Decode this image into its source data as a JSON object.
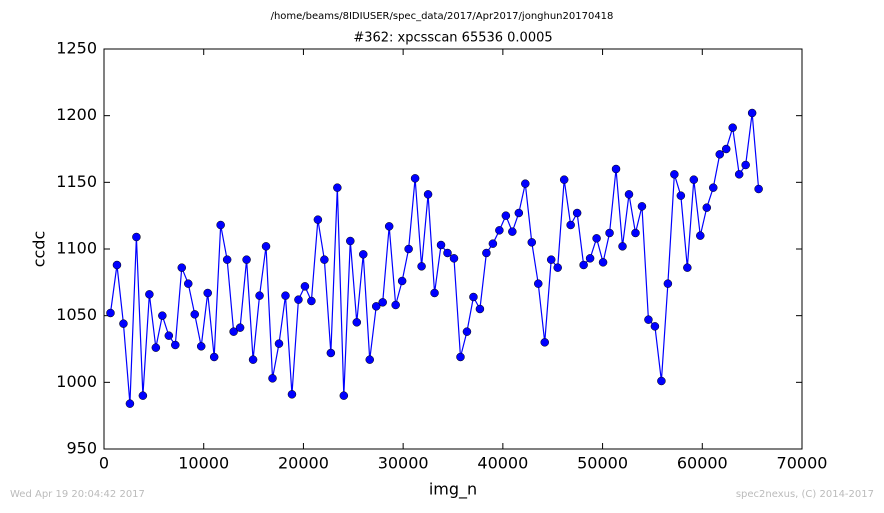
{
  "chart_data": {
    "type": "line",
    "header": "/home/beams/8IDIUSER/spec_data/2017/Apr2017/jonghun20170418",
    "title": "#362: xpcsscan 65536 0.0005",
    "xlabel": "img_n",
    "ylabel": "ccdc",
    "footer_left": "Wed Apr 19 20:04:42 2017",
    "footer_right": "spec2nexus, (C) 2014-2017",
    "xlim": [
      0,
      70000
    ],
    "xticks": [
      0,
      10000,
      20000,
      30000,
      40000,
      50000,
      60000,
      70000
    ],
    "ylim": [
      950,
      1250
    ],
    "yticks": [
      950,
      1000,
      1050,
      1100,
      1150,
      1200,
      1250
    ],
    "x": [
      650,
      1300,
      1950,
      2600,
      3250,
      3900,
      4550,
      5200,
      5850,
      6500,
      7150,
      7800,
      8450,
      9100,
      9750,
      10400,
      11050,
      11700,
      12350,
      13000,
      13650,
      14300,
      14950,
      15600,
      16250,
      16900,
      17550,
      18200,
      18850,
      19500,
      20150,
      20800,
      21450,
      22100,
      22750,
      23400,
      24050,
      24700,
      25350,
      26000,
      26650,
      27300,
      27950,
      28600,
      29250,
      29900,
      30550,
      31200,
      31850,
      32500,
      33150,
      33800,
      34450,
      35100,
      35750,
      36400,
      37050,
      37700,
      38350,
      39000,
      39650,
      40300,
      40950,
      41600,
      42250,
      42900,
      43550,
      44200,
      44850,
      45500,
      46150,
      46800,
      47450,
      48100,
      48750,
      49400,
      50050,
      50700,
      51350,
      52000,
      52650,
      53300,
      53950,
      54600,
      55250,
      55900,
      56550,
      57200,
      57850,
      58500,
      59150,
      59800,
      60450,
      61100,
      61750,
      62400,
      63050,
      63700,
      64350,
      65000,
      65650
    ],
    "series": [
      {
        "name": "ccdc",
        "color": "#0000ff",
        "values": [
          1052,
          1088,
          1044,
          984,
          1109,
          990,
          1066,
          1026,
          1050,
          1035,
          1028,
          1086,
          1074,
          1051,
          1027,
          1067,
          1019,
          1118,
          1092,
          1038,
          1041,
          1092,
          1017,
          1065,
          1102,
          1003,
          1029,
          1065,
          991,
          1062,
          1072,
          1061,
          1122,
          1092,
          1022,
          1146,
          990,
          1106,
          1045,
          1096,
          1017,
          1057,
          1060,
          1117,
          1058,
          1076,
          1100,
          1153,
          1087,
          1141,
          1067,
          1103,
          1097,
          1093,
          1019,
          1038,
          1064,
          1055,
          1097,
          1104,
          1114,
          1125,
          1113,
          1127,
          1149,
          1105,
          1074,
          1030,
          1092,
          1086,
          1152,
          1118,
          1127,
          1088,
          1093,
          1108,
          1090,
          1112,
          1160,
          1102,
          1141,
          1112,
          1132,
          1047,
          1042,
          1001,
          1074,
          1156,
          1140,
          1086,
          1152,
          1110,
          1131,
          1146,
          1171,
          1175,
          1191,
          1156,
          1163,
          1202,
          1145
        ]
      }
    ]
  }
}
